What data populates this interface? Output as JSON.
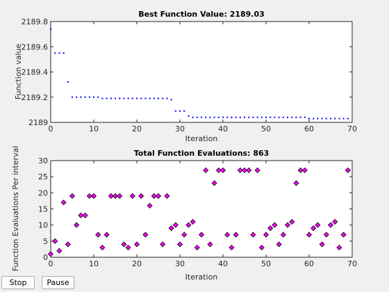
{
  "buttons": {
    "stop": "Stop",
    "pause": "Pause"
  },
  "colors": {
    "best_marker": "#0000ff",
    "eval_marker_fill": "#ff00ff",
    "eval_marker_edge": "#000000",
    "axes": "#262626"
  },
  "chart_data": [
    {
      "type": "scatter",
      "title": "Best Function Value: 2189.03",
      "xlabel": "Iteration",
      "ylabel": "Function value",
      "xlim": [
        0,
        70
      ],
      "ylim": [
        2189,
        2189.8
      ],
      "xticks": [
        "0",
        "10",
        "20",
        "30",
        "40",
        "50",
        "60",
        "70"
      ],
      "yticks": [
        "2189",
        "2189.2",
        "2189.4",
        "2189.6",
        "2189.8"
      ],
      "x": [
        0,
        1,
        2,
        3,
        4,
        5,
        6,
        7,
        8,
        9,
        10,
        11,
        12,
        13,
        14,
        15,
        16,
        17,
        18,
        19,
        20,
        21,
        22,
        23,
        24,
        25,
        26,
        27,
        28,
        29,
        30,
        31,
        32,
        33,
        34,
        35,
        36,
        37,
        38,
        39,
        40,
        41,
        42,
        43,
        44,
        45,
        46,
        47,
        48,
        49,
        50,
        51,
        52,
        53,
        54,
        55,
        56,
        57,
        58,
        59,
        60,
        61,
        62,
        63,
        64,
        65,
        66,
        67,
        68,
        69
      ],
      "values": [
        2189.74,
        2189.55,
        2189.55,
        2189.55,
        2189.32,
        2189.2,
        2189.2,
        2189.2,
        2189.2,
        2189.2,
        2189.2,
        2189.2,
        2189.19,
        2189.19,
        2189.19,
        2189.19,
        2189.19,
        2189.19,
        2189.19,
        2189.19,
        2189.19,
        2189.19,
        2189.19,
        2189.19,
        2189.19,
        2189.19,
        2189.19,
        2189.19,
        2189.18,
        2189.09,
        2189.09,
        2189.09,
        2189.05,
        2189.04,
        2189.04,
        2189.04,
        2189.04,
        2189.04,
        2189.04,
        2189.04,
        2189.04,
        2189.04,
        2189.04,
        2189.04,
        2189.04,
        2189.04,
        2189.04,
        2189.04,
        2189.04,
        2189.04,
        2189.04,
        2189.04,
        2189.04,
        2189.04,
        2189.04,
        2189.04,
        2189.04,
        2189.04,
        2189.04,
        2189.04,
        2189.03,
        2189.03,
        2189.03,
        2189.03,
        2189.03,
        2189.03,
        2189.03,
        2189.03,
        2189.03,
        2189.03
      ],
      "marker": "dot"
    },
    {
      "type": "scatter",
      "title": "Total Function Evaluations: 863",
      "xlabel": "Iteration",
      "ylabel": "Function Evaluations Per interval",
      "xlim": [
        0,
        70
      ],
      "ylim": [
        0,
        30
      ],
      "xticks": [
        "0",
        "10",
        "20",
        "30",
        "40",
        "50",
        "60",
        "70"
      ],
      "yticks": [
        "0",
        "5",
        "10",
        "15",
        "20",
        "25",
        "30"
      ],
      "x": [
        0,
        1,
        2,
        3,
        4,
        5,
        6,
        7,
        8,
        9,
        10,
        11,
        12,
        13,
        14,
        15,
        16,
        17,
        18,
        19,
        20,
        21,
        22,
        23,
        24,
        25,
        26,
        27,
        28,
        29,
        30,
        31,
        32,
        33,
        34,
        35,
        36,
        37,
        38,
        39,
        40,
        41,
        42,
        43,
        44,
        45,
        46,
        47,
        48,
        49,
        50,
        51,
        52,
        53,
        54,
        55,
        56,
        57,
        58,
        59,
        60,
        61,
        62,
        63,
        64,
        65,
        66,
        67,
        68,
        69
      ],
      "values": [
        1,
        5,
        2,
        17,
        4,
        19,
        10,
        13,
        13,
        19,
        19,
        7,
        3,
        7,
        19,
        19,
        19,
        4,
        3,
        19,
        4,
        19,
        7,
        16,
        19,
        19,
        4,
        19,
        9,
        10,
        4,
        7,
        10,
        11,
        3,
        7,
        27,
        4,
        23,
        27,
        27,
        7,
        3,
        7,
        27,
        27,
        27,
        7,
        27,
        3,
        7,
        9,
        10,
        4,
        7,
        10,
        11,
        23,
        27,
        27,
        7,
        9,
        10,
        4,
        7,
        10,
        11,
        3,
        7,
        27
      ],
      "marker": "diamond"
    }
  ]
}
